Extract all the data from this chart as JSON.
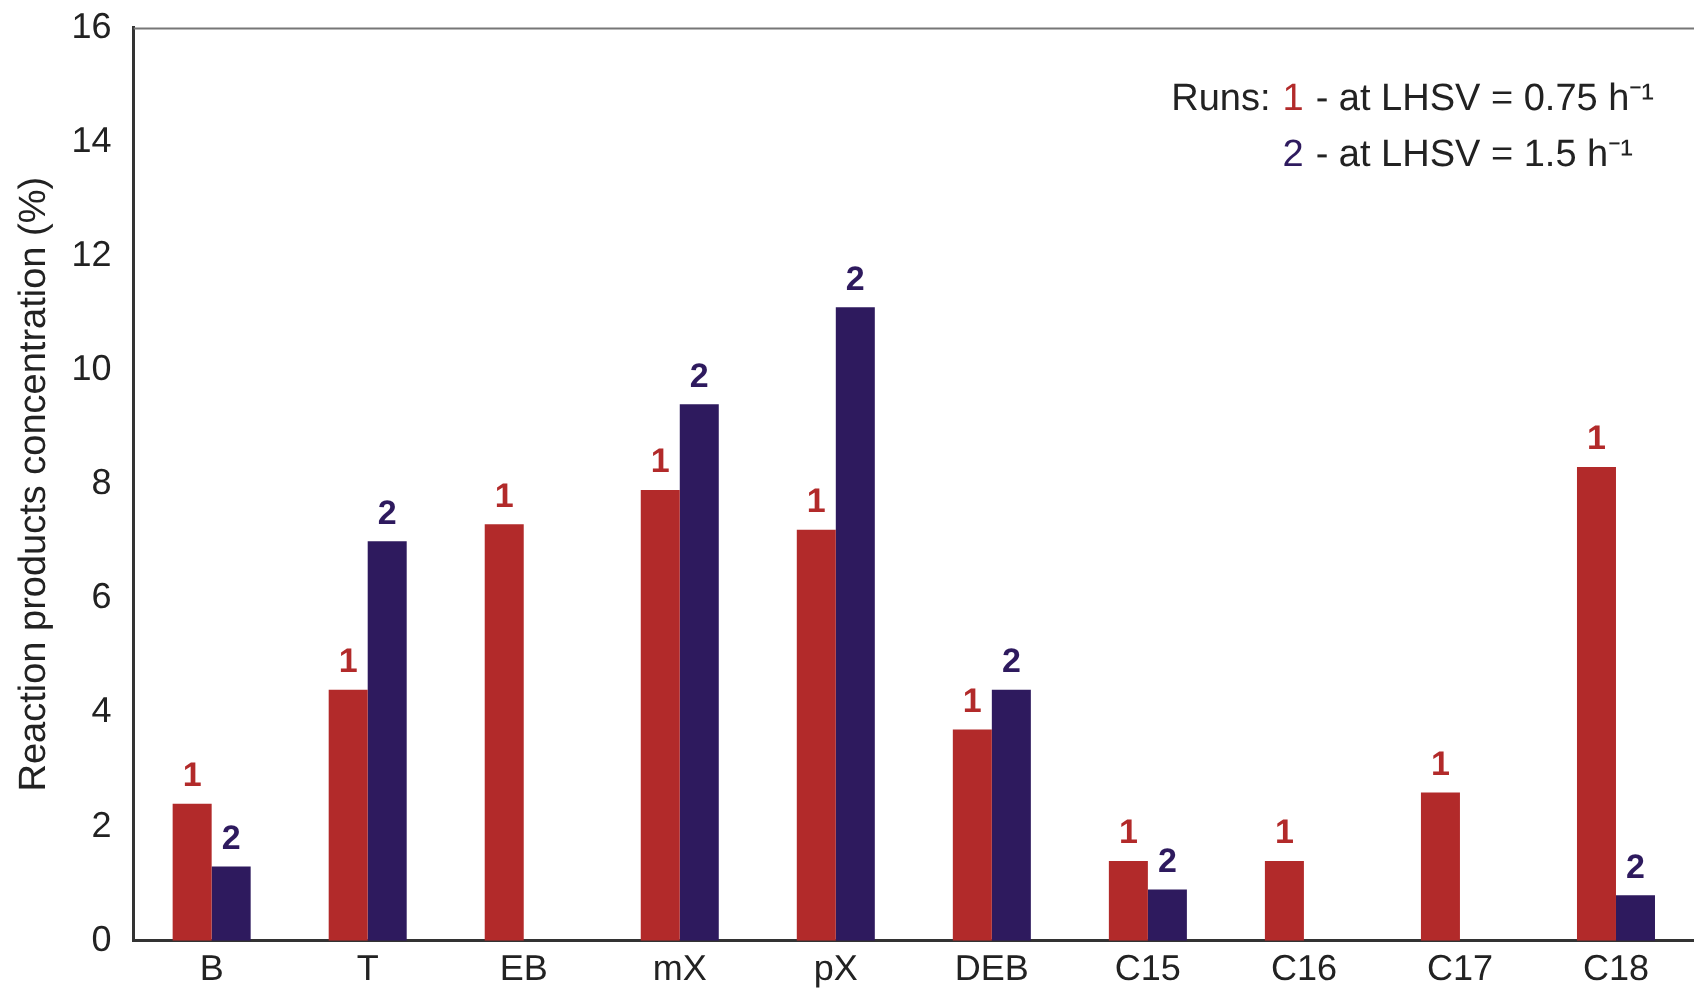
{
  "chart_data": {
    "type": "bar",
    "ylabel": "Reaction products concentration (%)",
    "legend_title": "Runs:",
    "annotations": [
      "- at LHSV = 0.75 h⁻¹",
      "- at LHSV = 1.5 h⁻¹"
    ],
    "categories": [
      "B",
      "T",
      "EB",
      "mX",
      "pX",
      "DEB",
      "C15",
      "C16",
      "C17",
      "C18"
    ],
    "series": [
      {
        "name": "1",
        "color": "#b22a2a",
        "values": [
          2.4,
          4.4,
          7.3,
          7.9,
          7.2,
          3.7,
          1.4,
          1.4,
          2.6,
          8.3
        ]
      },
      {
        "name": "2",
        "color": "#2e1a5e",
        "values": [
          1.3,
          7.0,
          null,
          9.4,
          11.1,
          4.4,
          0.9,
          null,
          null,
          0.8
        ]
      }
    ],
    "ylim": [
      0,
      16
    ],
    "yticks": [
      0,
      2,
      4,
      6,
      8,
      10,
      12,
      14,
      16
    ]
  }
}
